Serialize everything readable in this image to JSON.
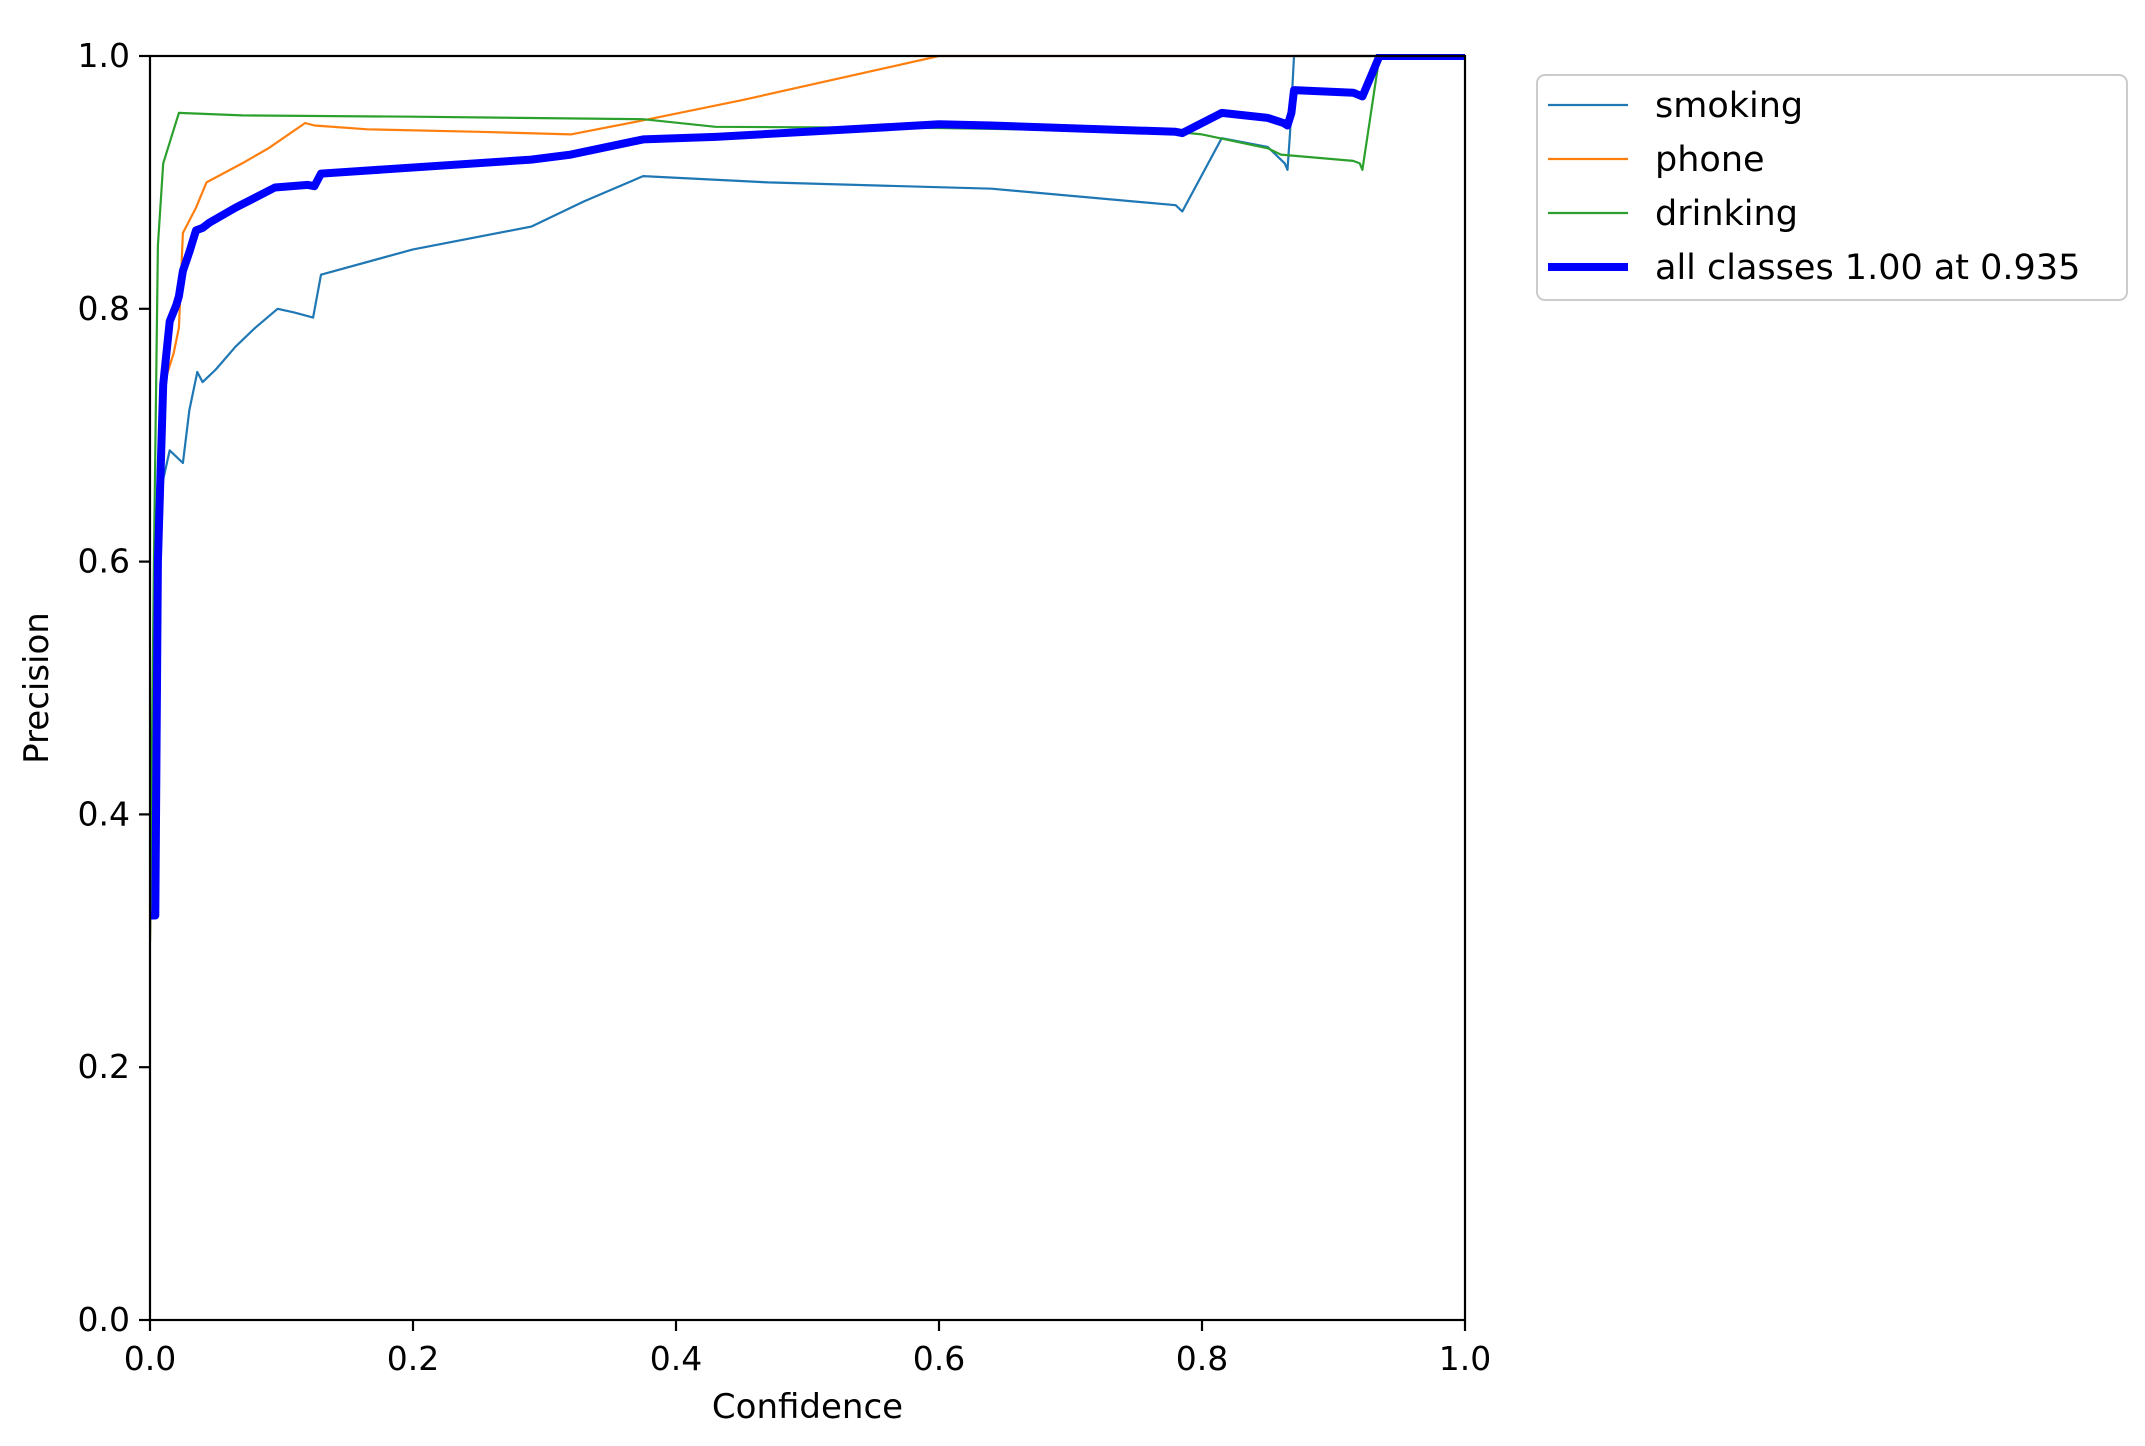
{
  "chart_data": {
    "type": "line",
    "xlabel": "Confidence",
    "ylabel": "Precision",
    "xlim": [
      0.0,
      1.0
    ],
    "ylim": [
      0.0,
      1.0
    ],
    "x_ticks": [
      "0.0",
      "0.2",
      "0.4",
      "0.6",
      "0.8",
      "1.0"
    ],
    "y_ticks": [
      "0.0",
      "0.2",
      "0.4",
      "0.6",
      "0.8",
      "1.0"
    ],
    "grid": false,
    "legend_position": "outside-top-right",
    "series": [
      {
        "name": "smoking",
        "color": "#1f77b4",
        "width": "thin",
        "points": [
          [
            0.0,
            0.31
          ],
          [
            0.003,
            0.52
          ],
          [
            0.007,
            0.62
          ],
          [
            0.01,
            0.665
          ],
          [
            0.015,
            0.688
          ],
          [
            0.02,
            0.683
          ],
          [
            0.025,
            0.678
          ],
          [
            0.03,
            0.72
          ],
          [
            0.036,
            0.75
          ],
          [
            0.04,
            0.742
          ],
          [
            0.05,
            0.752
          ],
          [
            0.065,
            0.77
          ],
          [
            0.08,
            0.785
          ],
          [
            0.097,
            0.8
          ],
          [
            0.11,
            0.797
          ],
          [
            0.124,
            0.793
          ],
          [
            0.13,
            0.827
          ],
          [
            0.2,
            0.847
          ],
          [
            0.29,
            0.865
          ],
          [
            0.33,
            0.885
          ],
          [
            0.375,
            0.905
          ],
          [
            0.47,
            0.9
          ],
          [
            0.64,
            0.895
          ],
          [
            0.78,
            0.882
          ],
          [
            0.785,
            0.877
          ],
          [
            0.815,
            0.935
          ],
          [
            0.85,
            0.928
          ],
          [
            0.863,
            0.915
          ],
          [
            0.865,
            0.91
          ],
          [
            0.867,
            0.94
          ],
          [
            0.87,
            1.0
          ],
          [
            1.0,
            1.0
          ]
        ]
      },
      {
        "name": "phone",
        "color": "#ff7f0e",
        "width": "thin",
        "points": [
          [
            0.0,
            0.3
          ],
          [
            0.004,
            0.6
          ],
          [
            0.008,
            0.7
          ],
          [
            0.012,
            0.745
          ],
          [
            0.018,
            0.765
          ],
          [
            0.022,
            0.785
          ],
          [
            0.025,
            0.86
          ],
          [
            0.035,
            0.88
          ],
          [
            0.043,
            0.9
          ],
          [
            0.07,
            0.915
          ],
          [
            0.09,
            0.927
          ],
          [
            0.118,
            0.947
          ],
          [
            0.125,
            0.945
          ],
          [
            0.165,
            0.942
          ],
          [
            0.25,
            0.94
          ],
          [
            0.32,
            0.938
          ],
          [
            0.37,
            0.948
          ],
          [
            0.45,
            0.965
          ],
          [
            0.6,
            1.0
          ],
          [
            1.0,
            1.0
          ]
        ]
      },
      {
        "name": "drinking",
        "color": "#2ca02c",
        "width": "thin",
        "points": [
          [
            0.0,
            0.3
          ],
          [
            0.003,
            0.6
          ],
          [
            0.006,
            0.85
          ],
          [
            0.01,
            0.915
          ],
          [
            0.022,
            0.955
          ],
          [
            0.07,
            0.953
          ],
          [
            0.2,
            0.952
          ],
          [
            0.375,
            0.95
          ],
          [
            0.43,
            0.944
          ],
          [
            0.6,
            0.943
          ],
          [
            0.78,
            0.94
          ],
          [
            0.8,
            0.938
          ],
          [
            0.85,
            0.927
          ],
          [
            0.86,
            0.922
          ],
          [
            0.915,
            0.917
          ],
          [
            0.92,
            0.915
          ],
          [
            0.922,
            0.91
          ],
          [
            0.935,
            1.0
          ],
          [
            1.0,
            1.0
          ]
        ]
      },
      {
        "name": "all classes 1.00 at 0.935",
        "color": "#0000ff",
        "width": "thick",
        "points": [
          [
            0.0,
            0.32
          ],
          [
            0.004,
            0.32
          ],
          [
            0.006,
            0.6
          ],
          [
            0.01,
            0.74
          ],
          [
            0.015,
            0.79
          ],
          [
            0.02,
            0.803
          ],
          [
            0.022,
            0.81
          ],
          [
            0.025,
            0.83
          ],
          [
            0.03,
            0.845
          ],
          [
            0.035,
            0.862
          ],
          [
            0.04,
            0.864
          ],
          [
            0.045,
            0.868
          ],
          [
            0.065,
            0.88
          ],
          [
            0.095,
            0.896
          ],
          [
            0.12,
            0.898
          ],
          [
            0.125,
            0.897
          ],
          [
            0.13,
            0.907
          ],
          [
            0.16,
            0.909
          ],
          [
            0.29,
            0.918
          ],
          [
            0.32,
            0.922
          ],
          [
            0.375,
            0.934
          ],
          [
            0.43,
            0.936
          ],
          [
            0.6,
            0.946
          ],
          [
            0.64,
            0.945
          ],
          [
            0.78,
            0.94
          ],
          [
            0.785,
            0.939
          ],
          [
            0.815,
            0.955
          ],
          [
            0.85,
            0.951
          ],
          [
            0.862,
            0.947
          ],
          [
            0.865,
            0.945
          ],
          [
            0.868,
            0.955
          ],
          [
            0.87,
            0.973
          ],
          [
            0.915,
            0.971
          ],
          [
            0.922,
            0.968
          ],
          [
            0.935,
            1.0
          ],
          [
            1.0,
            1.0
          ]
        ]
      }
    ]
  }
}
